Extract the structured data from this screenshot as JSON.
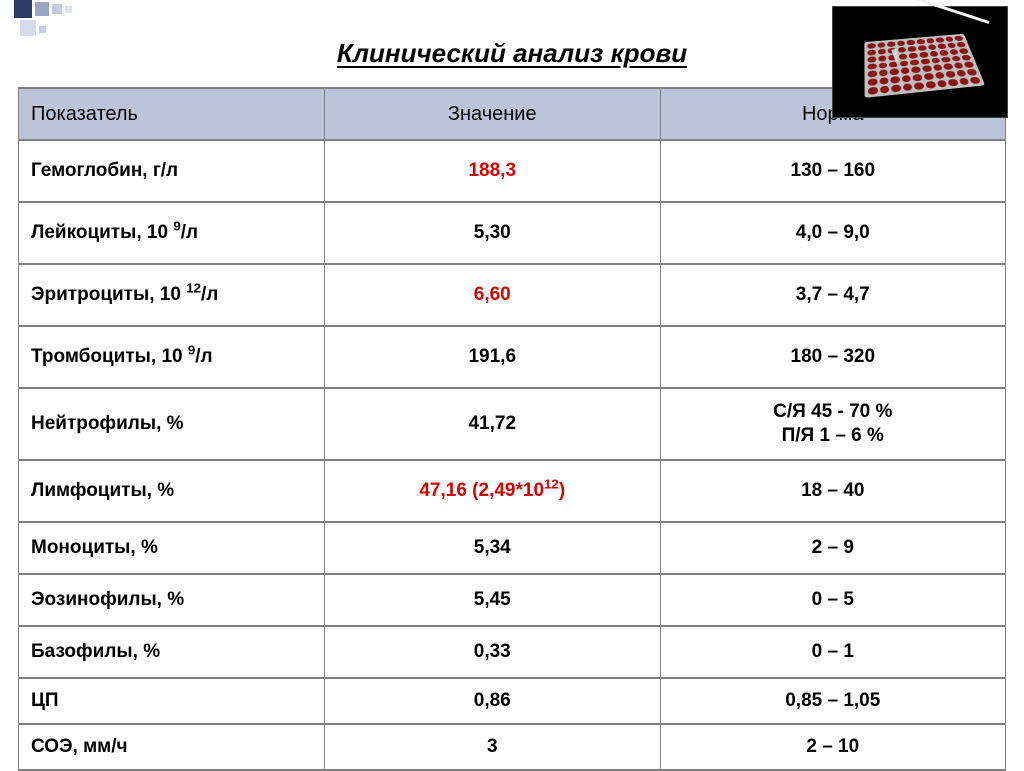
{
  "title": "Клинический анализ крови",
  "table": {
    "columns": [
      "Показатель",
      "Значение",
      "Норма"
    ],
    "col_widths_pct": [
      31,
      34,
      35
    ],
    "header_bg": "#bcc4d9",
    "border_color": "#808080",
    "font_size_header": 20,
    "font_size_body": 19,
    "abnormal_color": "#d40000",
    "text_color": "#000000",
    "rows": [
      {
        "param_html": "Гемоглобин, г/л",
        "value_html": "188,3",
        "abnormal": true,
        "norm_html": "130 – 160",
        "size": "A"
      },
      {
        "param_html": "Лейкоциты, 10 <sup>9</sup>/л",
        "value_html": "5,30",
        "abnormal": false,
        "norm_html": "4,0 – 9,0",
        "size": "A"
      },
      {
        "param_html": "Эритроциты,  10 <sup>12</sup>/л",
        "value_html": "6,60",
        "abnormal": true,
        "norm_html": "3,7 – 4,7",
        "size": "A"
      },
      {
        "param_html": "Тромбоциты, 10 <sup>9</sup>/л",
        "value_html": "191,6",
        "abnormal": false,
        "norm_html": "180 – 320",
        "size": "A"
      },
      {
        "param_html": "Нейтрофилы, %",
        "value_html": "41,72",
        "abnormal": false,
        "norm_html": "С/Я   45 - 70 %<br>П/Я   1 – 6 %",
        "size": "B"
      },
      {
        "param_html": "Лимфоциты, %",
        "value_html": "47,16 (2,49*10<sup>12</sup>)",
        "abnormal": true,
        "norm_html": "18 – 40",
        "size": "A"
      },
      {
        "param_html": "Моноциты, %",
        "value_html": "5,34",
        "abnormal": false,
        "norm_html": "2 – 9",
        "size": "C"
      },
      {
        "param_html": "Эозинофилы, %",
        "value_html": "5,45",
        "abnormal": false,
        "norm_html": "0 – 5",
        "size": "C"
      },
      {
        "param_html": "Базофилы, %",
        "value_html": "0,33",
        "abnormal": false,
        "norm_html": "0 – 1",
        "size": "C"
      },
      {
        "param_html": "ЦП",
        "value_html": "0,86",
        "abnormal": false,
        "norm_html": "0,85 – 1,05",
        "size": "D"
      },
      {
        "param_html": "СОЭ, мм/ч",
        "value_html": "3",
        "abnormal": false,
        "norm_html": "2 – 10",
        "size": "D"
      }
    ]
  },
  "decoration": {
    "squares": [
      "#2b3a67",
      "#9aa6c4",
      "#c6cde0",
      "#e0e4ef"
    ],
    "background": "#ffffff"
  },
  "photo_caption_semantics": "microplate-with-pipette"
}
